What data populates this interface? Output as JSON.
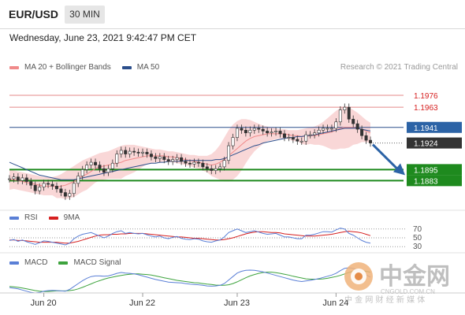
{
  "header": {
    "symbol": "EUR/USD",
    "timeframe": "30 MIN"
  },
  "datetime": "Wednesday, June 23, 2021 9:42:47 PM CET",
  "legend_main": [
    {
      "label": "MA 20 + Bollinger Bands",
      "color": "#f08a8a"
    },
    {
      "label": "MA 50",
      "color": "#2c4f8c"
    }
  ],
  "credit": "Research © 2021 Trading Central",
  "legend_rsi": [
    {
      "label": "RSI",
      "color": "#5a7fd6"
    },
    {
      "label": "9MA",
      "color": "#d62020"
    }
  ],
  "legend_macd": [
    {
      "label": "MACD",
      "color": "#5a7fd6"
    },
    {
      "label": "MACD Signal",
      "color": "#3da33d"
    }
  ],
  "watermark": {
    "brand": "中金网",
    "domain": "CNGOLD.COM.CN",
    "tagline": "中 金 网 财 经 新 媒 体"
  },
  "chart_data": [
    {
      "type": "candlestick",
      "x_labels": [
        "Jun 20",
        "Jun 22",
        "Jun 23",
        "Jun 24"
      ],
      "ylim": [
        1.1855,
        1.2
      ],
      "levels": [
        {
          "value": 1.1976,
          "label": "1.1976",
          "kind": "resistance"
        },
        {
          "value": 1.1963,
          "label": "1.1963",
          "kind": "resistance"
        },
        {
          "value": 1.1941,
          "label": "1.1941",
          "kind": "pivot"
        },
        {
          "value": 1.1924,
          "label": "1.1924",
          "kind": "last_price"
        },
        {
          "value": 1.1895,
          "label": "1.1895",
          "kind": "target"
        },
        {
          "value": 1.1883,
          "label": "1.1883",
          "kind": "target"
        }
      ],
      "close": [
        1.1885,
        1.1887,
        1.1883,
        1.1886,
        1.1882,
        1.1878,
        1.1872,
        1.1876,
        1.188,
        1.1879,
        1.1877,
        1.1874,
        1.187,
        1.1866,
        1.1869,
        1.188,
        1.1888,
        1.1895,
        1.19,
        1.1903,
        1.19,
        1.1896,
        1.1892,
        1.1896,
        1.1902,
        1.1912,
        1.1916,
        1.1912,
        1.1915,
        1.1914,
        1.1913,
        1.1914,
        1.1912,
        1.1909,
        1.1907,
        1.1909,
        1.1906,
        1.1904,
        1.1906,
        1.1908,
        1.1904,
        1.1902,
        1.1901,
        1.1903,
        1.1902,
        1.1898,
        1.1896,
        1.1894,
        1.1896,
        1.1898,
        1.1905,
        1.1921,
        1.193,
        1.194,
        1.1938,
        1.1935,
        1.1938,
        1.194,
        1.1939,
        1.1937,
        1.1935,
        1.1936,
        1.1937,
        1.1934,
        1.193,
        1.193,
        1.1928,
        1.1926,
        1.1926,
        1.1933,
        1.1933,
        1.1935,
        1.1938,
        1.194,
        1.194,
        1.194,
        1.1947,
        1.196,
        1.1963,
        1.195,
        1.1945,
        1.1939,
        1.1932,
        1.1927,
        1.1924
      ],
      "ma20": [
        1.1884,
        1.1884,
        1.1883,
        1.1882,
        1.1881,
        1.188,
        1.1879,
        1.1878,
        1.1877,
        1.1877,
        1.1877,
        1.1876,
        1.1877,
        1.1878,
        1.188,
        1.1882,
        1.1885,
        1.1888,
        1.189,
        1.1893,
        1.1896,
        1.1898,
        1.1899,
        1.19,
        1.1901,
        1.1902,
        1.1903,
        1.1905,
        1.1906,
        1.1907,
        1.1908,
        1.1909,
        1.191,
        1.191,
        1.191,
        1.191,
        1.191,
        1.1909,
        1.1909,
        1.1908,
        1.1907,
        1.1906,
        1.1905,
        1.1904,
        1.1903,
        1.1902,
        1.1901,
        1.19,
        1.1901,
        1.1903,
        1.1906,
        1.191,
        1.1914,
        1.1918,
        1.1922,
        1.1926,
        1.1929,
        1.1931,
        1.1932,
        1.1933,
        1.1934,
        1.1934,
        1.1934,
        1.1934,
        1.1934,
        1.1933,
        1.1932,
        1.1932,
        1.1931,
        1.1931,
        1.1932,
        1.1932,
        1.1933,
        1.1934,
        1.1935,
        1.1936,
        1.1938,
        1.194,
        1.1941,
        1.1941,
        1.1941,
        1.194,
        1.1939,
        1.1937,
        1.1935
      ],
      "ma50": [
        1.1903,
        1.1901,
        1.1899,
        1.1897,
        1.1895,
        1.1893,
        1.1891,
        1.1889,
        1.1888,
        1.1887,
        1.1886,
        1.1885,
        1.1884,
        1.1884,
        1.1884,
        1.1884,
        1.1885,
        1.1886,
        1.1887,
        1.1888,
        1.1889,
        1.189,
        1.1891,
        1.1892,
        1.1893,
        1.1894,
        1.1895,
        1.1896,
        1.1897,
        1.1898,
        1.1899,
        1.19,
        1.1901,
        1.1902,
        1.1902,
        1.1903,
        1.1903,
        1.1904,
        1.1904,
        1.1904,
        1.1904,
        1.1905,
        1.1905,
        1.1905,
        1.1905,
        1.1905,
        1.1905,
        1.1905,
        1.1906,
        1.1906,
        1.1907,
        1.1909,
        1.1911,
        1.1913,
        1.1915,
        1.1917,
        1.1919,
        1.1921,
        1.1922,
        1.1924,
        1.1925,
        1.1926,
        1.1927,
        1.1928,
        1.1929,
        1.193,
        1.193,
        1.1931,
        1.1931,
        1.1932,
        1.1932,
        1.1933,
        1.1934,
        1.1935,
        1.1936,
        1.1937,
        1.1938,
        1.1939,
        1.194,
        1.194,
        1.194,
        1.194,
        1.1939,
        1.1938,
        1.1937
      ],
      "bb_upper": [
        1.1895,
        1.1894,
        1.1893,
        1.1892,
        1.1891,
        1.189,
        1.1889,
        1.1888,
        1.1887,
        1.1887,
        1.1887,
        1.1888,
        1.189,
        1.1893,
        1.1896,
        1.1899,
        1.1902,
        1.1905,
        1.1907,
        1.1909,
        1.1911,
        1.1913,
        1.1914,
        1.1915,
        1.1917,
        1.1919,
        1.1921,
        1.1922,
        1.1922,
        1.1922,
        1.1921,
        1.192,
        1.1919,
        1.1918,
        1.1917,
        1.1917,
        1.1916,
        1.1915,
        1.1915,
        1.1914,
        1.1913,
        1.1912,
        1.1911,
        1.1911,
        1.191,
        1.191,
        1.191,
        1.1912,
        1.1916,
        1.1922,
        1.193,
        1.1938,
        1.1944,
        1.1948,
        1.195,
        1.195,
        1.1949,
        1.1947,
        1.1945,
        1.1943,
        1.1942,
        1.1941,
        1.194,
        1.1939,
        1.1939,
        1.1938,
        1.1938,
        1.1938,
        1.1939,
        1.194,
        1.1941,
        1.1942,
        1.1944,
        1.1947,
        1.1951,
        1.1955,
        1.1959,
        1.1962,
        1.1964,
        1.1963,
        1.196,
        1.1957,
        1.1953,
        1.1949,
        1.1946
      ],
      "bb_lower": [
        1.1873,
        1.1874,
        1.1873,
        1.1872,
        1.1871,
        1.187,
        1.1869,
        1.1868,
        1.1867,
        1.1867,
        1.1867,
        1.1864,
        1.1864,
        1.1863,
        1.1864,
        1.1865,
        1.1868,
        1.1871,
        1.1873,
        1.1877,
        1.1881,
        1.1883,
        1.1884,
        1.1885,
        1.1885,
        1.1885,
        1.1885,
        1.1888,
        1.189,
        1.1892,
        1.1895,
        1.1898,
        1.1901,
        1.1902,
        1.1903,
        1.1903,
        1.1904,
        1.1903,
        1.1903,
        1.1902,
        1.1901,
        1.19,
        1.1899,
        1.1897,
        1.1896,
        1.1894,
        1.1892,
        1.1888,
        1.1886,
        1.1884,
        1.1882,
        1.1882,
        1.1884,
        1.1888,
        1.1894,
        1.1902,
        1.1909,
        1.1915,
        1.1919,
        1.1923,
        1.1926,
        1.1927,
        1.1928,
        1.1929,
        1.1929,
        1.1928,
        1.1926,
        1.1926,
        1.1923,
        1.1922,
        1.1923,
        1.1922,
        1.1922,
        1.1921,
        1.1919,
        1.1917,
        1.1917,
        1.1918,
        1.1918,
        1.1919,
        1.1922,
        1.1923,
        1.1925,
        1.1925,
        1.1924
      ]
    },
    {
      "type": "line",
      "name": "RSI panel",
      "ylim": [
        25,
        75
      ],
      "levels": [
        70,
        50,
        30
      ],
      "series": [
        {
          "name": "RSI",
          "color": "#5a7fd6",
          "values": [
            44,
            46,
            42,
            45,
            41,
            38,
            35,
            39,
            43,
            42,
            40,
            38,
            36,
            34,
            38,
            48,
            54,
            58,
            60,
            62,
            58,
            54,
            50,
            54,
            60,
            64,
            66,
            60,
            62,
            60,
            59,
            60,
            57,
            54,
            52,
            54,
            50,
            48,
            51,
            53,
            49,
            47,
            46,
            48,
            47,
            43,
            41,
            40,
            43,
            45,
            52,
            62,
            66,
            70,
            66,
            62,
            64,
            66,
            63,
            60,
            58,
            59,
            60,
            56,
            52,
            52,
            50,
            48,
            48,
            56,
            56,
            58,
            61,
            64,
            64,
            63,
            68,
            72,
            70,
            60,
            56,
            50,
            44,
            40,
            38
          ]
        },
        {
          "name": "9MA",
          "color": "#d62020",
          "values": [
            45,
            45,
            44,
            44,
            43,
            42,
            41,
            40,
            40,
            40,
            40,
            40,
            39,
            38,
            38,
            40,
            42,
            45,
            48,
            51,
            54,
            56,
            57,
            57,
            58,
            58,
            59,
            59,
            60,
            60,
            60,
            60,
            59,
            58,
            57,
            56,
            55,
            54,
            53,
            52,
            52,
            51,
            50,
            49,
            49,
            48,
            47,
            46,
            45,
            45,
            46,
            48,
            50,
            53,
            56,
            59,
            61,
            63,
            64,
            64,
            63,
            62,
            62,
            61,
            59,
            58,
            57,
            56,
            55,
            54,
            54,
            54,
            55,
            56,
            57,
            58,
            60,
            62,
            64,
            65,
            64,
            63,
            61,
            58,
            55
          ]
        }
      ]
    },
    {
      "type": "line",
      "name": "MACD panel",
      "series": [
        {
          "name": "MACD",
          "color": "#5a7fd6",
          "values": [
            -2.0,
            -2.2,
            -2.4,
            -2.8,
            -3.2,
            -3.6,
            -3.8,
            -3.6,
            -3.2,
            -3.0,
            -2.9,
            -3.0,
            -3.1,
            -3.2,
            -2.6,
            -1.6,
            -0.6,
            0.4,
            1.2,
            1.8,
            2.0,
            2.0,
            1.9,
            2.0,
            2.4,
            2.9,
            3.2,
            3.0,
            2.9,
            2.7,
            2.4,
            2.0,
            1.6,
            1.2,
            0.8,
            0.5,
            0.2,
            -0.1,
            -0.2,
            -0.3,
            -0.4,
            -0.6,
            -0.8,
            -0.9,
            -1.0,
            -1.2,
            -1.4,
            -1.5,
            -1.4,
            -1.2,
            -0.6,
            0.6,
            1.8,
            3.0,
            3.6,
            3.9,
            4.0,
            3.9,
            3.7,
            3.4,
            3.0,
            2.6,
            2.2,
            1.8,
            1.4,
            1.0,
            0.6,
            0.3,
            0.1,
            0.3,
            0.5,
            0.8,
            1.1,
            1.5,
            1.9,
            2.3,
            2.9,
            3.8,
            4.6,
            4.8,
            4.6,
            4.0,
            3.2,
            2.4,
            1.6
          ]
        },
        {
          "name": "MACD Signal",
          "color": "#3da33d",
          "values": [
            -1.6,
            -1.7,
            -1.9,
            -2.1,
            -2.4,
            -2.7,
            -3.0,
            -3.2,
            -3.3,
            -3.3,
            -3.2,
            -3.1,
            -3.1,
            -3.1,
            -3.0,
            -2.8,
            -2.4,
            -1.9,
            -1.3,
            -0.7,
            -0.1,
            0.4,
            0.9,
            1.3,
            1.6,
            1.9,
            2.2,
            2.4,
            2.6,
            2.7,
            2.7,
            2.6,
            2.5,
            2.3,
            2.0,
            1.7,
            1.4,
            1.1,
            0.8,
            0.5,
            0.3,
            0.1,
            -0.1,
            -0.3,
            -0.4,
            -0.6,
            -0.8,
            -0.9,
            -1.1,
            -1.2,
            -1.2,
            -1.0,
            -0.6,
            0.0,
            0.7,
            1.4,
            2.0,
            2.5,
            2.9,
            3.2,
            3.3,
            3.3,
            3.1,
            2.9,
            2.6,
            2.3,
            1.9,
            1.6,
            1.3,
            1.0,
            0.9,
            0.9,
            0.9,
            1.0,
            1.2,
            1.5,
            1.8,
            2.2,
            2.7,
            3.2,
            3.6,
            3.8,
            3.8,
            3.6,
            3.3
          ]
        }
      ]
    }
  ]
}
